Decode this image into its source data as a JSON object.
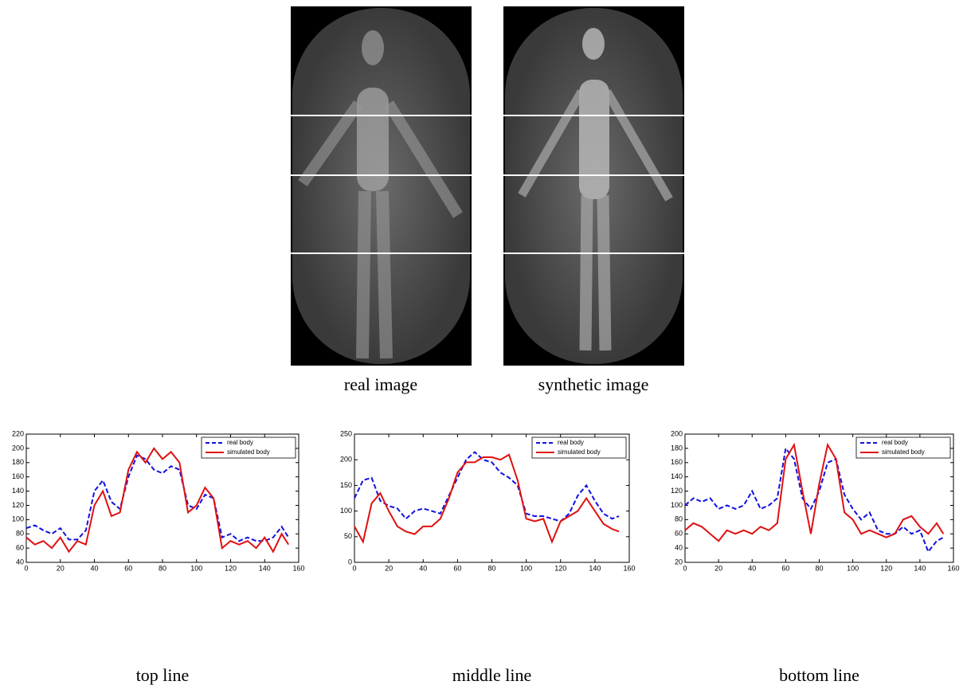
{
  "images": {
    "captions": [
      "real image",
      "synthetic image"
    ]
  },
  "chart_data": [
    {
      "type": "line",
      "title": "top line",
      "legend": "upper right",
      "x": [
        0,
        5,
        10,
        15,
        20,
        25,
        30,
        35,
        40,
        45,
        50,
        55,
        60,
        65,
        70,
        75,
        80,
        85,
        90,
        95,
        100,
        105,
        110,
        115,
        120,
        125,
        130,
        135,
        140,
        145,
        150,
        154
      ],
      "series": [
        {
          "name": "real body",
          "color": "#1010e0",
          "dash": true,
          "values": [
            88,
            92,
            85,
            80,
            88,
            72,
            72,
            85,
            140,
            155,
            125,
            115,
            160,
            190,
            185,
            170,
            165,
            175,
            170,
            120,
            115,
            135,
            130,
            75,
            80,
            70,
            75,
            70,
            70,
            75,
            90,
            75
          ]
        },
        {
          "name": "simulated body",
          "color": "#e01010",
          "dash": false,
          "values": [
            75,
            65,
            70,
            60,
            75,
            55,
            70,
            65,
            120,
            140,
            105,
            110,
            170,
            195,
            180,
            200,
            185,
            195,
            180,
            110,
            120,
            145,
            130,
            60,
            70,
            65,
            70,
            60,
            75,
            55,
            80,
            65
          ]
        }
      ],
      "xlim": [
        0,
        160
      ],
      "xticks": [
        0,
        20,
        40,
        60,
        80,
        100,
        120,
        140,
        160
      ],
      "ylim": [
        40,
        220
      ],
      "yticks": [
        40,
        60,
        80,
        100,
        120,
        140,
        160,
        180,
        200,
        220
      ]
    },
    {
      "type": "line",
      "title": "middle line",
      "legend": "upper right",
      "x": [
        0,
        5,
        10,
        15,
        20,
        25,
        30,
        35,
        40,
        45,
        50,
        55,
        60,
        65,
        70,
        75,
        80,
        85,
        90,
        95,
        100,
        105,
        110,
        115,
        120,
        125,
        130,
        135,
        140,
        145,
        150,
        154
      ],
      "series": [
        {
          "name": "real body",
          "color": "#1010e0",
          "dash": true,
          "values": [
            125,
            160,
            165,
            120,
            110,
            105,
            85,
            100,
            105,
            100,
            95,
            130,
            165,
            200,
            215,
            200,
            195,
            175,
            165,
            150,
            95,
            90,
            90,
            85,
            80,
            95,
            130,
            150,
            120,
            95,
            85,
            90
          ]
        },
        {
          "name": "simulated body",
          "color": "#e01010",
          "dash": false,
          "values": [
            70,
            40,
            115,
            135,
            100,
            70,
            60,
            55,
            70,
            70,
            85,
            125,
            175,
            195,
            195,
            205,
            205,
            200,
            210,
            160,
            85,
            80,
            85,
            40,
            80,
            90,
            100,
            125,
            100,
            75,
            65,
            60
          ]
        }
      ],
      "xlim": [
        0,
        160
      ],
      "xticks": [
        0,
        20,
        40,
        60,
        80,
        100,
        120,
        140,
        160
      ],
      "ylim": [
        0,
        250
      ],
      "yticks": [
        0,
        50,
        100,
        150,
        200,
        250
      ]
    },
    {
      "type": "line",
      "title": "bottom line",
      "legend": "upper right",
      "x": [
        0,
        5,
        10,
        15,
        20,
        25,
        30,
        35,
        40,
        45,
        50,
        55,
        60,
        65,
        70,
        75,
        80,
        85,
        90,
        95,
        100,
        105,
        110,
        115,
        120,
        125,
        130,
        135,
        140,
        145,
        150,
        154
      ],
      "series": [
        {
          "name": "real body",
          "color": "#1010e0",
          "dash": true,
          "values": [
            100,
            110,
            105,
            110,
            95,
            100,
            95,
            100,
            120,
            95,
            100,
            110,
            180,
            165,
            110,
            95,
            120,
            160,
            165,
            115,
            95,
            80,
            90,
            65,
            60,
            60,
            70,
            60,
            65,
            35,
            50,
            55
          ]
        },
        {
          "name": "simulated body",
          "color": "#e01010",
          "dash": false,
          "values": [
            65,
            75,
            70,
            60,
            50,
            65,
            60,
            65,
            60,
            70,
            65,
            75,
            165,
            185,
            120,
            60,
            130,
            185,
            165,
            90,
            80,
            60,
            65,
            60,
            55,
            60,
            80,
            85,
            70,
            60,
            75,
            60
          ]
        }
      ],
      "xlim": [
        0,
        160
      ],
      "xticks": [
        0,
        20,
        40,
        60,
        80,
        100,
        120,
        140,
        160
      ],
      "ylim": [
        20,
        200
      ],
      "yticks": [
        20,
        40,
        60,
        80,
        100,
        120,
        140,
        160,
        180,
        200
      ]
    }
  ]
}
